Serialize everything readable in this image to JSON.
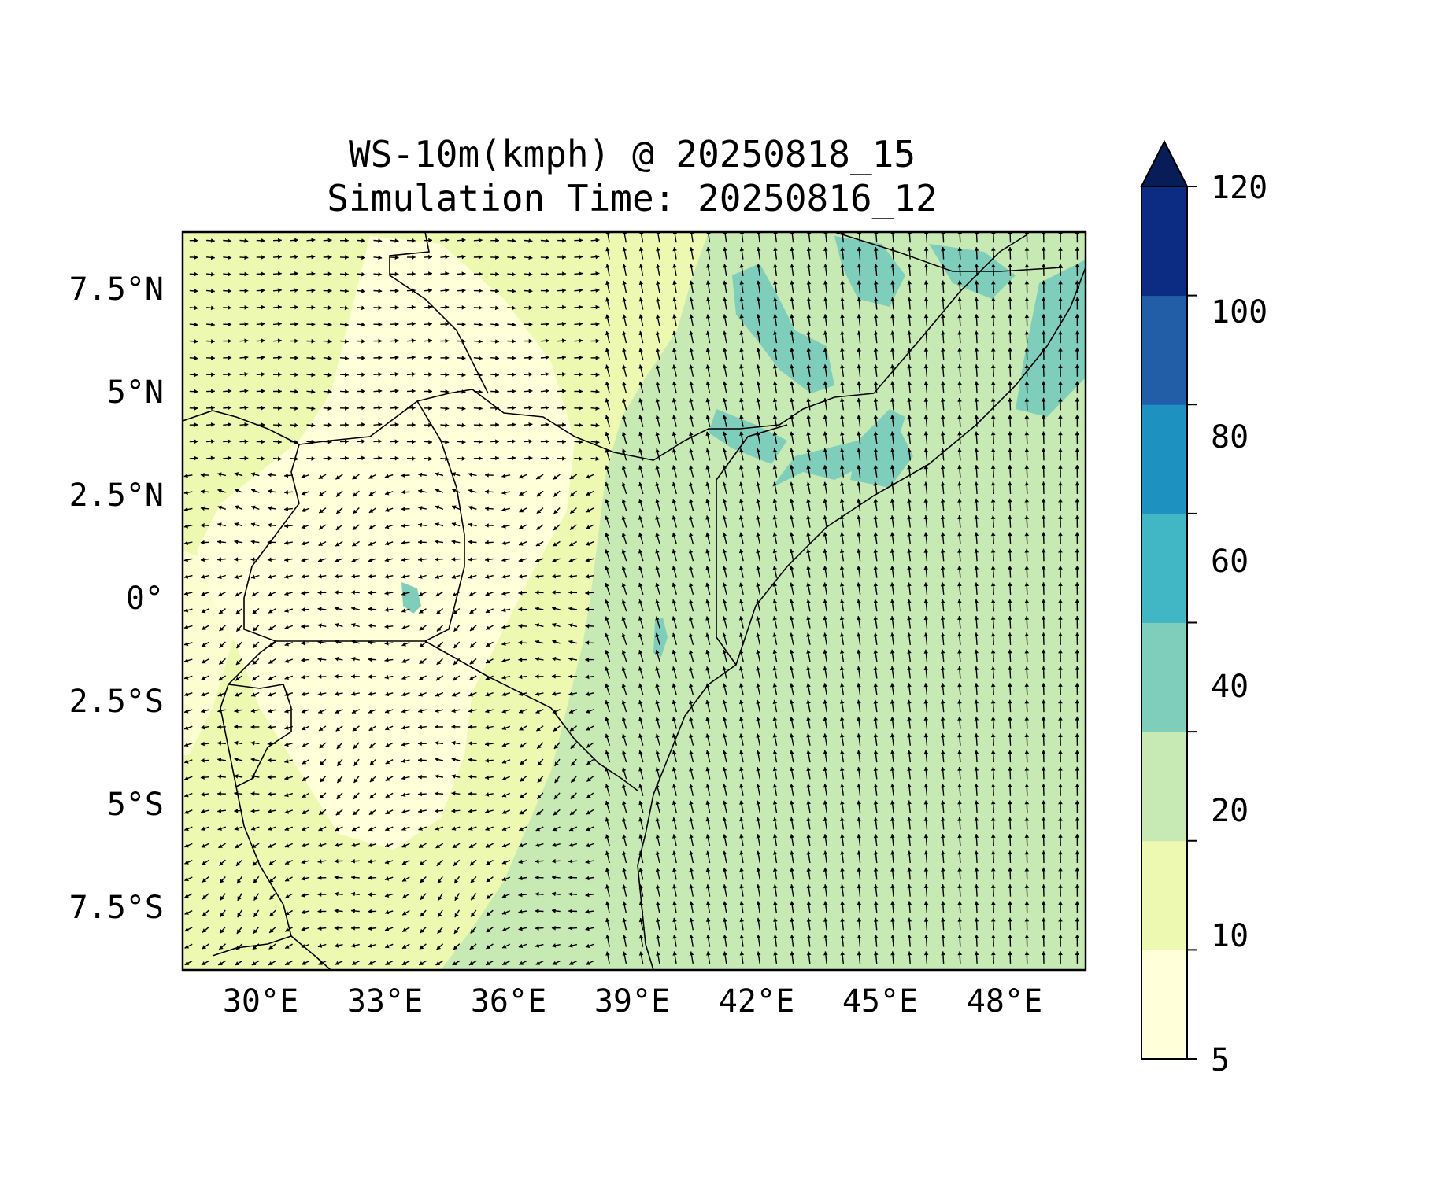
{
  "figure": {
    "title_line1": "WS-10m(kmph) @ 20250818_15",
    "title_line2": "Simulation Time: 20250816_12"
  },
  "map": {
    "lon_range": [
      28,
      50
    ],
    "lat_range": [
      -9,
      9
    ],
    "x_ticks": [
      "30°E",
      "33°E",
      "36°E",
      "39°E",
      "42°E",
      "45°E",
      "48°E"
    ],
    "y_ticks": [
      "7.5°N",
      "5°N",
      "2.5°N",
      "0°",
      "2.5°S",
      "5°S",
      "7.5°S"
    ]
  },
  "colorbar": {
    "ticks": [
      "120",
      "100",
      "80",
      "60",
      "40",
      "20",
      "10",
      "5"
    ],
    "levels": [
      5,
      10,
      20,
      40,
      60,
      80,
      100,
      120
    ],
    "colors": [
      "#ffffd9",
      "#edf8b1",
      "#c7e9b4",
      "#7fcdbb",
      "#41b6c4",
      "#1d91c0",
      "#225ea8",
      "#0c2c84"
    ],
    "extend": "max",
    "extend_color": "#081d58"
  },
  "colors": {
    "land_light": "#ffffd9",
    "land_pale": "#edf8b1",
    "ocean_green": "#c7e9b4",
    "strong_wind": "#7fcdbb"
  }
}
